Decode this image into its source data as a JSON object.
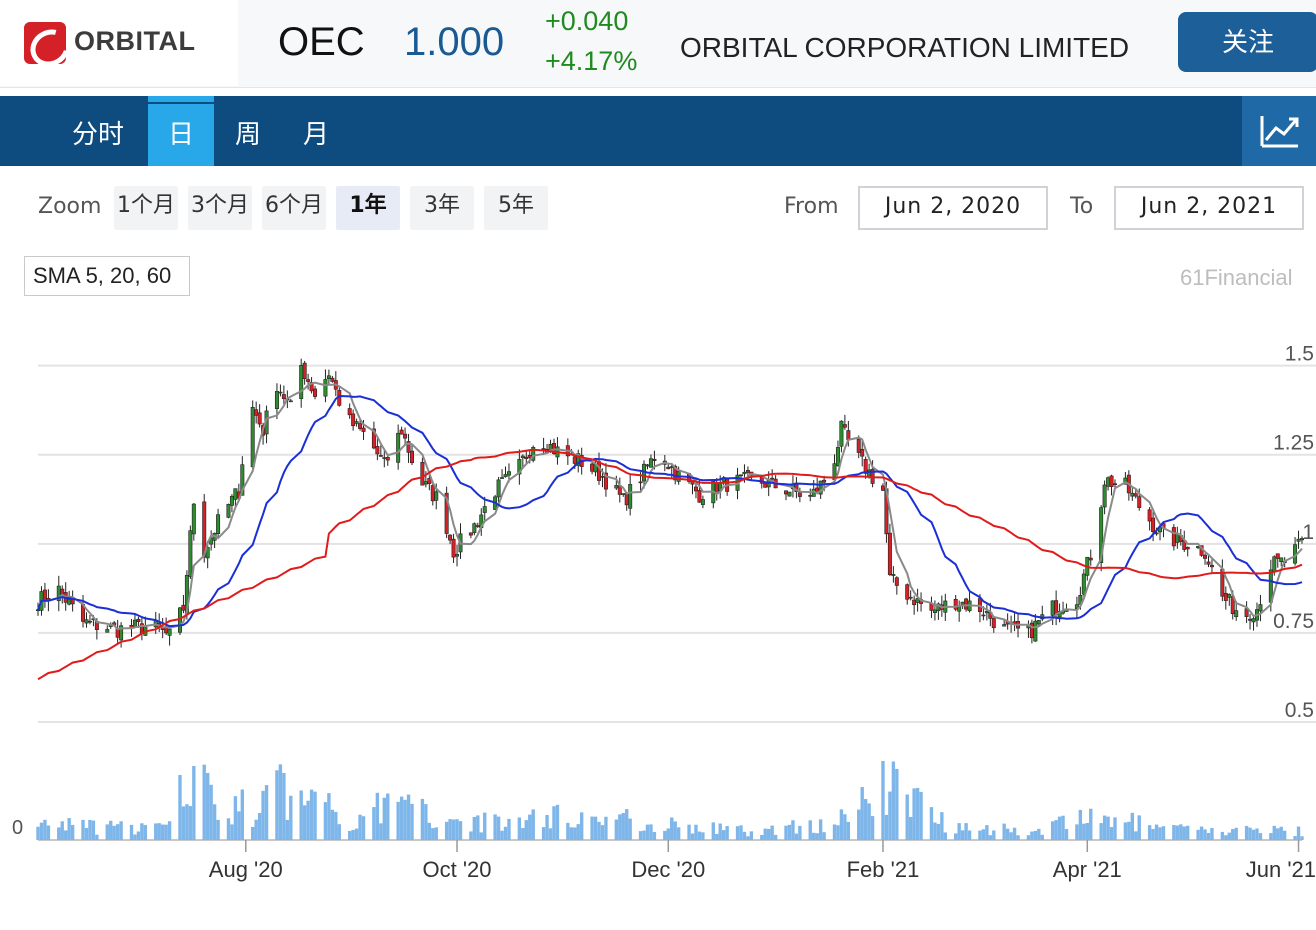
{
  "header": {
    "logo_text": "ORBITAL",
    "symbol": "OEC",
    "price": "1.000",
    "change": "+0.040",
    "change_pct": "+4.17%",
    "company": "ORBITAL CORPORATION LIMITED",
    "follow_label": "关注"
  },
  "tabs": [
    {
      "label": "分时",
      "active": false
    },
    {
      "label": "日",
      "active": true
    },
    {
      "label": "周",
      "active": false
    },
    {
      "label": "月",
      "active": false
    }
  ],
  "zoom": {
    "label": "Zoom",
    "buttons": [
      "1个月",
      "3个月",
      "6个月",
      "1年",
      "3年",
      "5年"
    ],
    "active": "1年",
    "from_label": "From",
    "from_value": "Jun 2, 2020",
    "to_label": "To",
    "to_value": "Jun 2, 2021"
  },
  "indicator_label": "SMA 5, 20, 60",
  "credits": "61Financial",
  "colors": {
    "up": "#2e8b2e",
    "down": "#d42027",
    "sma5": "#8a8a8a",
    "sma20": "#1a2fd6",
    "sma60": "#e01b1b",
    "volume": "#7eb6ea",
    "accent": "#0e4c80"
  },
  "chart_data": {
    "type": "candlestick",
    "x_tick_labels": [
      "Aug '20",
      "Oct '20",
      "Dec '20",
      "Feb '21",
      "Apr '21",
      "Jun '21"
    ],
    "x_tick_dates": [
      "2020-08-01",
      "2020-10-01",
      "2020-12-01",
      "2021-02-01",
      "2021-04-01",
      "2021-06-01"
    ],
    "x_range": [
      "2020-06-02",
      "2021-06-02"
    ],
    "y_ticks": [
      1.5,
      1.25,
      1,
      0.75,
      0.5
    ],
    "y_tick_labels": [
      "1.5",
      "1.25",
      "1",
      "0.75",
      "0.5"
    ],
    "ylim": [
      0.5,
      1.6
    ],
    "volume_axis_label": "0",
    "price_path": [
      [
        "2020-06-02",
        0.84
      ],
      [
        "2020-06-08",
        0.87
      ],
      [
        "2020-06-15",
        0.78
      ],
      [
        "2020-06-25",
        0.76
      ],
      [
        "2020-07-05",
        0.77
      ],
      [
        "2020-07-10",
        0.74
      ],
      [
        "2020-07-14",
        0.82
      ],
      [
        "2020-07-17",
        1.12
      ],
      [
        "2020-07-20",
        0.98
      ],
      [
        "2020-07-25",
        1.08
      ],
      [
        "2020-07-30",
        1.15
      ],
      [
        "2020-08-02",
        1.4
      ],
      [
        "2020-08-06",
        1.32
      ],
      [
        "2020-08-10",
        1.45
      ],
      [
        "2020-08-14",
        1.38
      ],
      [
        "2020-08-17",
        1.5
      ],
      [
        "2020-08-21",
        1.42
      ],
      [
        "2020-08-25",
        1.48
      ],
      [
        "2020-08-30",
        1.35
      ],
      [
        "2020-09-05",
        1.3
      ],
      [
        "2020-09-10",
        1.22
      ],
      [
        "2020-09-15",
        1.32
      ],
      [
        "2020-09-20",
        1.18
      ],
      [
        "2020-09-26",
        1.12
      ],
      [
        "2020-09-30",
        0.98
      ],
      [
        "2020-10-06",
        1.05
      ],
      [
        "2020-10-12",
        1.15
      ],
      [
        "2020-10-18",
        1.2
      ],
      [
        "2020-10-24",
        1.3
      ],
      [
        "2020-10-30",
        1.26
      ],
      [
        "2020-11-06",
        1.23
      ],
      [
        "2020-11-12",
        1.19
      ],
      [
        "2020-11-18",
        1.12
      ],
      [
        "2020-11-24",
        1.2
      ],
      [
        "2020-11-28",
        1.26
      ],
      [
        "2020-12-04",
        1.19
      ],
      [
        "2020-12-10",
        1.14
      ],
      [
        "2020-12-18",
        1.17
      ],
      [
        "2020-12-26",
        1.18
      ],
      [
        "2021-01-05",
        1.15
      ],
      [
        "2021-01-11",
        1.13
      ],
      [
        "2021-01-17",
        1.2
      ],
      [
        "2021-01-20",
        1.32
      ],
      [
        "2021-01-24",
        1.25
      ],
      [
        "2021-01-28",
        1.2
      ],
      [
        "2021-02-01",
        1.15
      ],
      [
        "2021-02-03",
        0.9
      ],
      [
        "2021-02-08",
        0.86
      ],
      [
        "2021-02-15",
        0.81
      ],
      [
        "2021-02-22",
        0.84
      ],
      [
        "2021-03-01",
        0.82
      ],
      [
        "2021-03-08",
        0.76
      ],
      [
        "2021-03-15",
        0.75
      ],
      [
        "2021-03-22",
        0.82
      ],
      [
        "2021-03-29",
        0.85
      ],
      [
        "2021-04-03",
        1.0
      ],
      [
        "2021-04-06",
        1.18
      ],
      [
        "2021-04-12",
        1.16
      ],
      [
        "2021-04-18",
        1.08
      ],
      [
        "2021-04-23",
        1.02
      ],
      [
        "2021-04-30",
        1.0
      ],
      [
        "2021-05-05",
        0.98
      ],
      [
        "2021-05-10",
        0.85
      ],
      [
        "2021-05-16",
        0.8
      ],
      [
        "2021-05-20",
        0.82
      ],
      [
        "2021-05-24",
        0.94
      ],
      [
        "2021-05-28",
        0.95
      ],
      [
        "2021-06-02",
        1.0
      ]
    ],
    "volume_path": [
      [
        "2020-06-02",
        0.2
      ],
      [
        "2020-06-25",
        0.15
      ],
      [
        "2020-07-10",
        0.15
      ],
      [
        "2020-07-16",
        0.9
      ],
      [
        "2020-07-18",
        1.0
      ],
      [
        "2020-07-24",
        0.25
      ],
      [
        "2020-07-30",
        0.4
      ],
      [
        "2020-08-05",
        0.35
      ],
      [
        "2020-08-10",
        0.7
      ],
      [
        "2020-08-16",
        0.4
      ],
      [
        "2020-08-24",
        0.6
      ],
      [
        "2020-08-30",
        0.2
      ],
      [
        "2020-09-12",
        0.45
      ],
      [
        "2020-09-26",
        0.3
      ],
      [
        "2020-10-12",
        0.2
      ],
      [
        "2020-10-28",
        0.3
      ],
      [
        "2020-11-20",
        0.25
      ],
      [
        "2020-12-10",
        0.15
      ],
      [
        "2020-12-28",
        0.1
      ],
      [
        "2021-01-20",
        0.25
      ],
      [
        "2021-02-01",
        0.65
      ],
      [
        "2021-02-08",
        0.6
      ],
      [
        "2021-02-20",
        0.2
      ],
      [
        "2021-03-15",
        0.1
      ],
      [
        "2021-04-06",
        0.3
      ],
      [
        "2021-04-20",
        0.15
      ],
      [
        "2021-05-10",
        0.1
      ],
      [
        "2021-05-28",
        0.15
      ],
      [
        "2021-06-02",
        0.1
      ]
    ],
    "series": [
      {
        "name": "5",
        "color": "#8a8a8a"
      },
      {
        "name": "20",
        "color": "#1a2fd6"
      },
      {
        "name": "60",
        "color": "#e01b1b"
      }
    ]
  }
}
